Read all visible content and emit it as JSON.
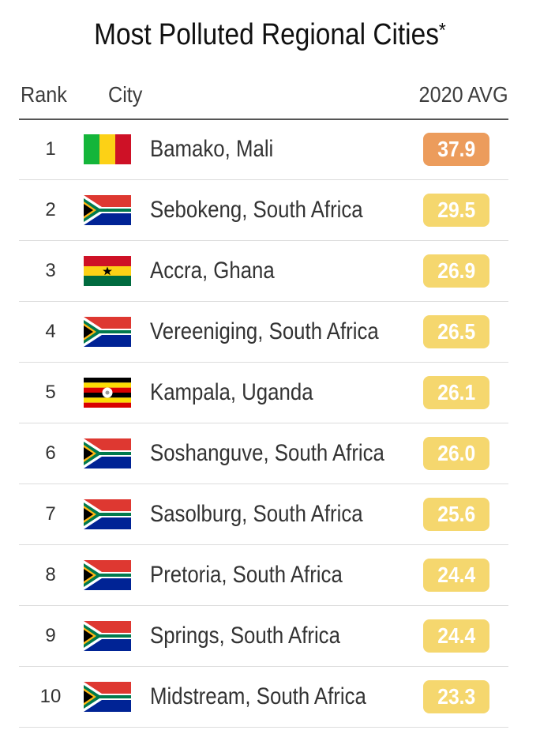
{
  "title": "Most Polluted Regional Cities",
  "title_mark": "*",
  "columns": {
    "rank": "Rank",
    "city": "City",
    "avg": "2020 AVG"
  },
  "colors": {
    "badge_high": "#ec9c5c",
    "badge_moderate": "#f5d76e",
    "badge_text": "#ffffff"
  },
  "rows": [
    {
      "rank": "1",
      "flag": "mali-flag",
      "city": "Bamako, Mali",
      "value": "37.9",
      "level": "high"
    },
    {
      "rank": "2",
      "flag": "south-africa-flag",
      "city": "Sebokeng, South Africa",
      "value": "29.5",
      "level": "moderate"
    },
    {
      "rank": "3",
      "flag": "ghana-flag",
      "city": "Accra, Ghana",
      "value": "26.9",
      "level": "moderate"
    },
    {
      "rank": "4",
      "flag": "south-africa-flag",
      "city": "Vereeniging, South Africa",
      "value": "26.5",
      "level": "moderate"
    },
    {
      "rank": "5",
      "flag": "uganda-flag",
      "city": "Kampala, Uganda",
      "value": "26.1",
      "level": "moderate"
    },
    {
      "rank": "6",
      "flag": "south-africa-flag",
      "city": "Soshanguve, South Africa",
      "value": "26.0",
      "level": "moderate"
    },
    {
      "rank": "7",
      "flag": "south-africa-flag",
      "city": "Sasolburg, South Africa",
      "value": "25.6",
      "level": "moderate"
    },
    {
      "rank": "8",
      "flag": "south-africa-flag",
      "city": "Pretoria, South Africa",
      "value": "24.4",
      "level": "moderate"
    },
    {
      "rank": "9",
      "flag": "south-africa-flag",
      "city": "Springs, South Africa",
      "value": "24.4",
      "level": "moderate"
    },
    {
      "rank": "10",
      "flag": "south-africa-flag",
      "city": "Midstream, South Africa",
      "value": "23.3",
      "level": "moderate"
    }
  ]
}
